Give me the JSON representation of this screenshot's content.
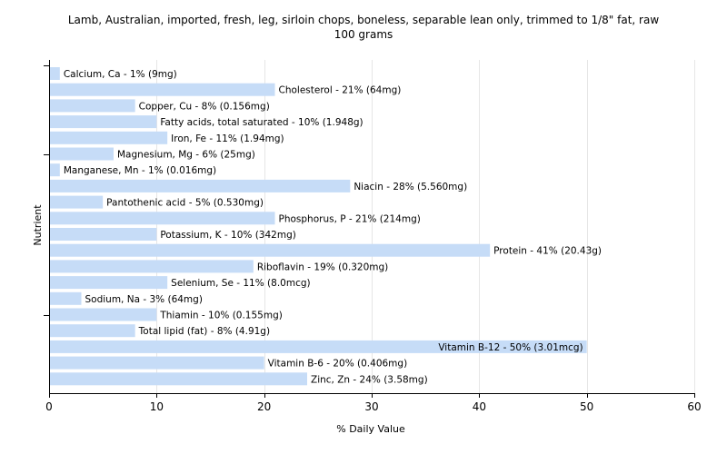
{
  "chart_data": {
    "type": "bar",
    "orientation": "horizontal",
    "title_lines": [
      "Lamb, Australian, imported, fresh, leg, sirloin chops, boneless, separable lean only, trimmed to 1/8\" fat, raw",
      "100 grams"
    ],
    "xlabel": "% Daily Value",
    "ylabel": "Nutrient",
    "xlim": [
      0,
      60
    ],
    "xticks": [
      0,
      10,
      20,
      30,
      40,
      50,
      60
    ],
    "grid": "vertical",
    "bar_color": "#c6dcf7",
    "categories": [
      "Calcium, Ca",
      "Cholesterol",
      "Copper, Cu",
      "Fatty acids, total saturated",
      "Iron, Fe",
      "Magnesium, Mg",
      "Manganese, Mn",
      "Niacin",
      "Pantothenic acid",
      "Phosphorus, P",
      "Potassium, K",
      "Protein",
      "Riboflavin",
      "Selenium, Se",
      "Sodium, Na",
      "Thiamin",
      "Total lipid (fat)",
      "Vitamin B-12",
      "Vitamin B-6",
      "Zinc, Zn"
    ],
    "values": [
      1,
      21,
      8,
      10,
      11,
      6,
      1,
      28,
      5,
      21,
      10,
      41,
      19,
      11,
      3,
      10,
      8,
      50,
      20,
      24
    ],
    "labels": [
      "Calcium, Ca - 1% (9mg)",
      "Cholesterol - 21% (64mg)",
      "Copper, Cu - 8% (0.156mg)",
      "Fatty acids, total saturated - 10% (1.948g)",
      "Iron, Fe - 11% (1.94mg)",
      "Magnesium, Mg - 6% (25mg)",
      "Manganese, Mn - 1% (0.016mg)",
      "Niacin - 28% (5.560mg)",
      "Pantothenic acid - 5% (0.530mg)",
      "Phosphorus, P - 21% (214mg)",
      "Potassium, K - 10% (342mg)",
      "Protein - 41% (20.43g)",
      "Riboflavin - 19% (0.320mg)",
      "Selenium, Se - 11% (8.0mcg)",
      "Sodium, Na - 3% (64mg)",
      "Thiamin - 10% (0.155mg)",
      "Total lipid (fat) - 8% (4.91g)",
      "Vitamin B-12 - 50% (3.01mcg)",
      "Vitamin B-6 - 20% (0.406mg)",
      "Zinc, Zn - 24% (3.58mg)"
    ]
  }
}
